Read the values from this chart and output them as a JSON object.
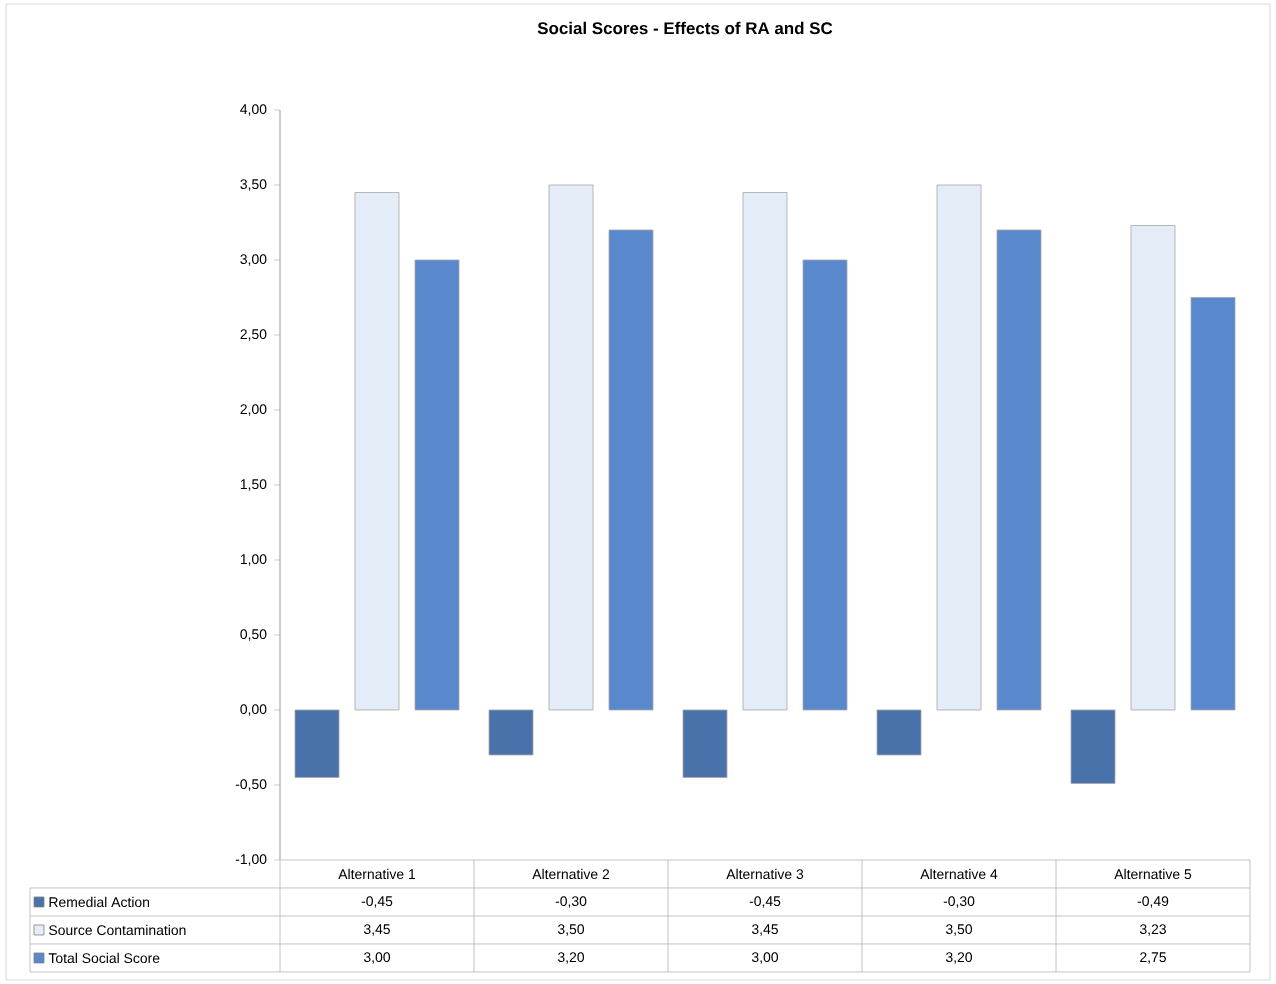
{
  "chart_data": {
    "type": "bar",
    "title": "Social Scores - Effects of RA and SC",
    "categories": [
      "Alternative 1",
      "Alternative 2",
      "Alternative 3",
      "Alternative 4",
      "Alternative 5"
    ],
    "series": [
      {
        "name": "Remedial Action",
        "color": "#4a72aa",
        "values": [
          -0.45,
          -0.3,
          -0.45,
          -0.3,
          -0.49
        ],
        "value_labels": [
          "-0,45",
          "-0,30",
          "-0,45",
          "-0,30",
          "-0,49"
        ]
      },
      {
        "name": "Source Contamination",
        "color": "#e4ecf7",
        "values": [
          3.45,
          3.5,
          3.45,
          3.5,
          3.23
        ],
        "value_labels": [
          "3,45",
          "3,50",
          "3,45",
          "3,50",
          "3,23"
        ]
      },
      {
        "name": "Total Social Score",
        "color": "#5a88cc",
        "values": [
          3.0,
          3.2,
          3.0,
          3.2,
          2.75
        ],
        "value_labels": [
          "3,00",
          "3,20",
          "3,00",
          "3,20",
          "2,75"
        ]
      }
    ],
    "ylim": [
      -1,
      4
    ],
    "yticks": [
      {
        "value": -1,
        "label": "-1,00"
      },
      {
        "value": -0.5,
        "label": "-0,50"
      },
      {
        "value": 0,
        "label": "0,00"
      },
      {
        "value": 0.5,
        "label": "0,50"
      },
      {
        "value": 1,
        "label": "1,00"
      },
      {
        "value": 1.5,
        "label": "1,50"
      },
      {
        "value": 2,
        "label": "2,00"
      },
      {
        "value": 2.5,
        "label": "2,50"
      },
      {
        "value": 3,
        "label": "3,00"
      },
      {
        "value": 3.5,
        "label": "3,50"
      },
      {
        "value": 4,
        "label": "4,00"
      }
    ],
    "legend": "bottom left"
  }
}
